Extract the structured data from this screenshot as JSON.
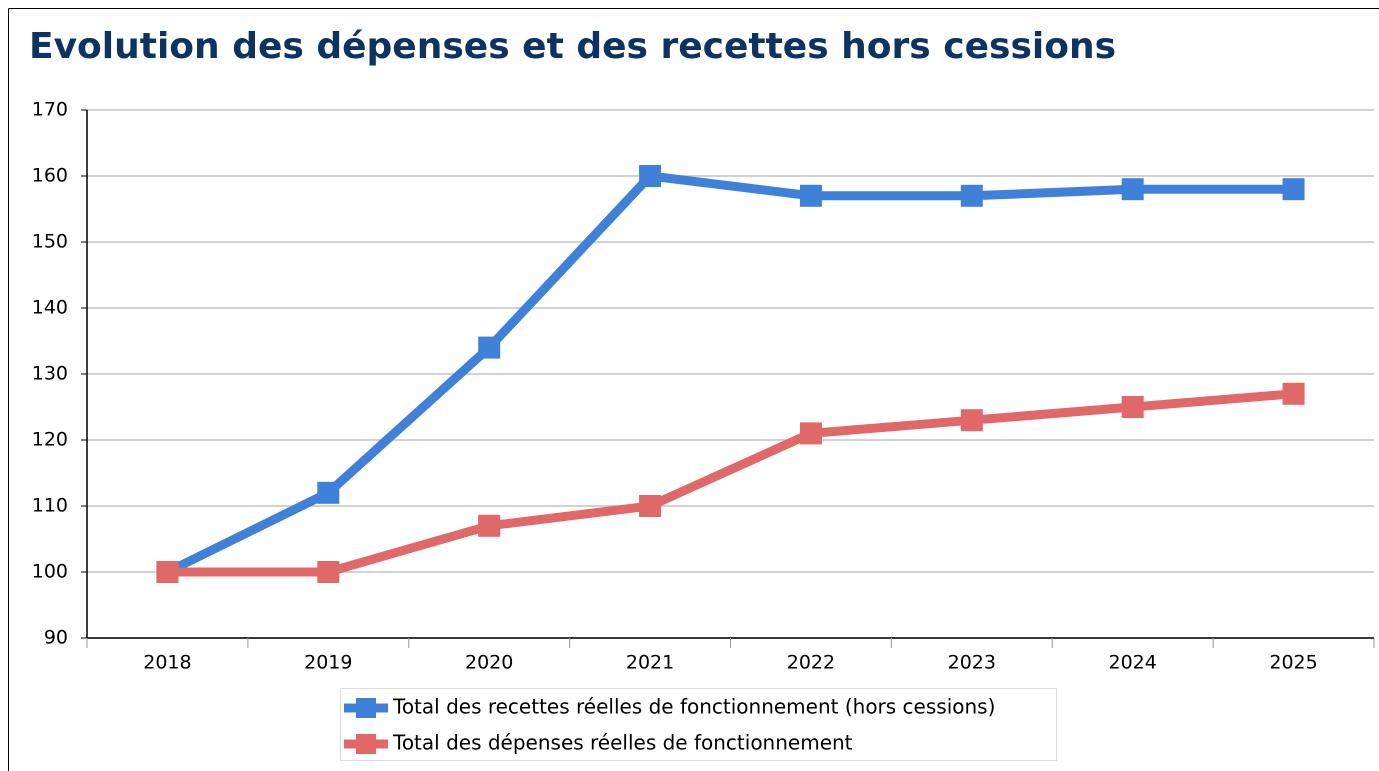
{
  "chart_data": {
    "type": "line",
    "title": "Evolution des dépenses et des recettes hors cessions",
    "categories": [
      "2018",
      "2019",
      "2020",
      "2021",
      "2022",
      "2023",
      "2024",
      "2025"
    ],
    "series": [
      {
        "name": "Total des recettes réelles de fonctionnement (hors cessions)",
        "color": "#3f80d8",
        "values": [
          100,
          112,
          134,
          160,
          157,
          157,
          158,
          158
        ]
      },
      {
        "name": "Total des dépenses réelles de fonctionnement",
        "color": "#e06868",
        "values": [
          100,
          100,
          107,
          110,
          121,
          123,
          125,
          127
        ]
      }
    ],
    "ylim": [
      90,
      170
    ],
    "yticks": [
      90,
      100,
      110,
      120,
      130,
      140,
      150,
      160,
      170
    ],
    "grid": true,
    "legend": "bottom"
  }
}
